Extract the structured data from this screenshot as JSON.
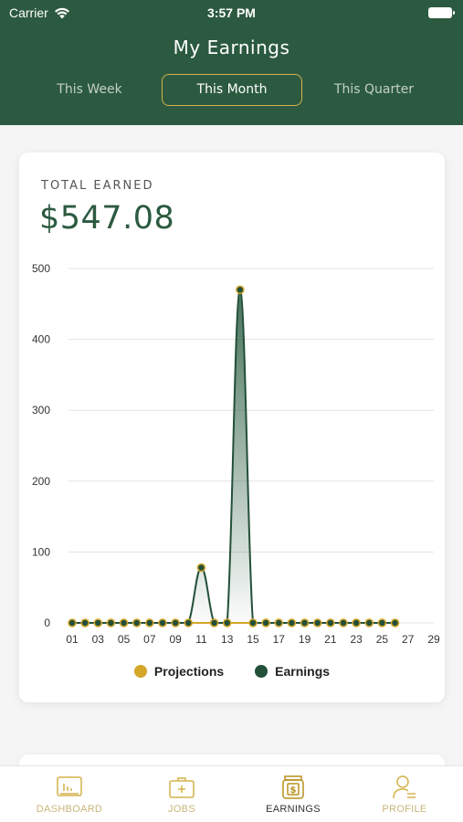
{
  "status_bar": {
    "carrier": "Carrier",
    "time": "3:57 PM"
  },
  "header": {
    "title": "My Earnings",
    "tabs": [
      {
        "label": "This Week",
        "active": false
      },
      {
        "label": "This Month",
        "active": true
      },
      {
        "label": "This Quarter",
        "active": false
      }
    ]
  },
  "summary": {
    "label": "TOTAL EARNED",
    "amount": "$547.08"
  },
  "chart_data": {
    "type": "area",
    "x": [
      1,
      2,
      3,
      4,
      5,
      6,
      7,
      8,
      9,
      10,
      11,
      12,
      13,
      14,
      15,
      16,
      17,
      18,
      19,
      20,
      21,
      22,
      23,
      24,
      25,
      26
    ],
    "x_tick_labels": [
      "01",
      "03",
      "05",
      "07",
      "09",
      "11",
      "13",
      "15",
      "17",
      "19",
      "21",
      "23",
      "25",
      "27",
      "29"
    ],
    "y_tick_labels": [
      "0",
      "100",
      "200",
      "300",
      "400",
      "500"
    ],
    "ylim": [
      0,
      500
    ],
    "xlim": [
      1,
      29
    ],
    "series": [
      {
        "name": "Projections",
        "color": "#d4a62a",
        "values": [
          0,
          0,
          0,
          0,
          0,
          0,
          0,
          0,
          0,
          0,
          0,
          0,
          0,
          0,
          0,
          0,
          0,
          0,
          0,
          0,
          0,
          0,
          0,
          0,
          0,
          0
        ]
      },
      {
        "name": "Earnings",
        "color": "#24503a",
        "values": [
          0,
          0,
          0,
          0,
          0,
          0,
          0,
          0,
          0,
          0,
          78,
          0,
          0,
          470,
          0,
          0,
          0,
          0,
          0,
          0,
          0,
          0,
          0,
          0,
          0,
          0
        ]
      }
    ],
    "grid": true,
    "legend_position": "bottom"
  },
  "tabbar": {
    "items": [
      {
        "label": "DASHBOARD",
        "icon": "dashboard-icon",
        "active": false
      },
      {
        "label": "JOBS",
        "icon": "briefcase-icon",
        "active": false
      },
      {
        "label": "EARNINGS",
        "icon": "earnings-icon",
        "active": true
      },
      {
        "label": "PROFILE",
        "icon": "profile-icon",
        "active": false
      }
    ]
  },
  "colors": {
    "primary": "#2c5a40",
    "accent": "#d4b24a",
    "tab_inactive": "#c9b57a"
  }
}
